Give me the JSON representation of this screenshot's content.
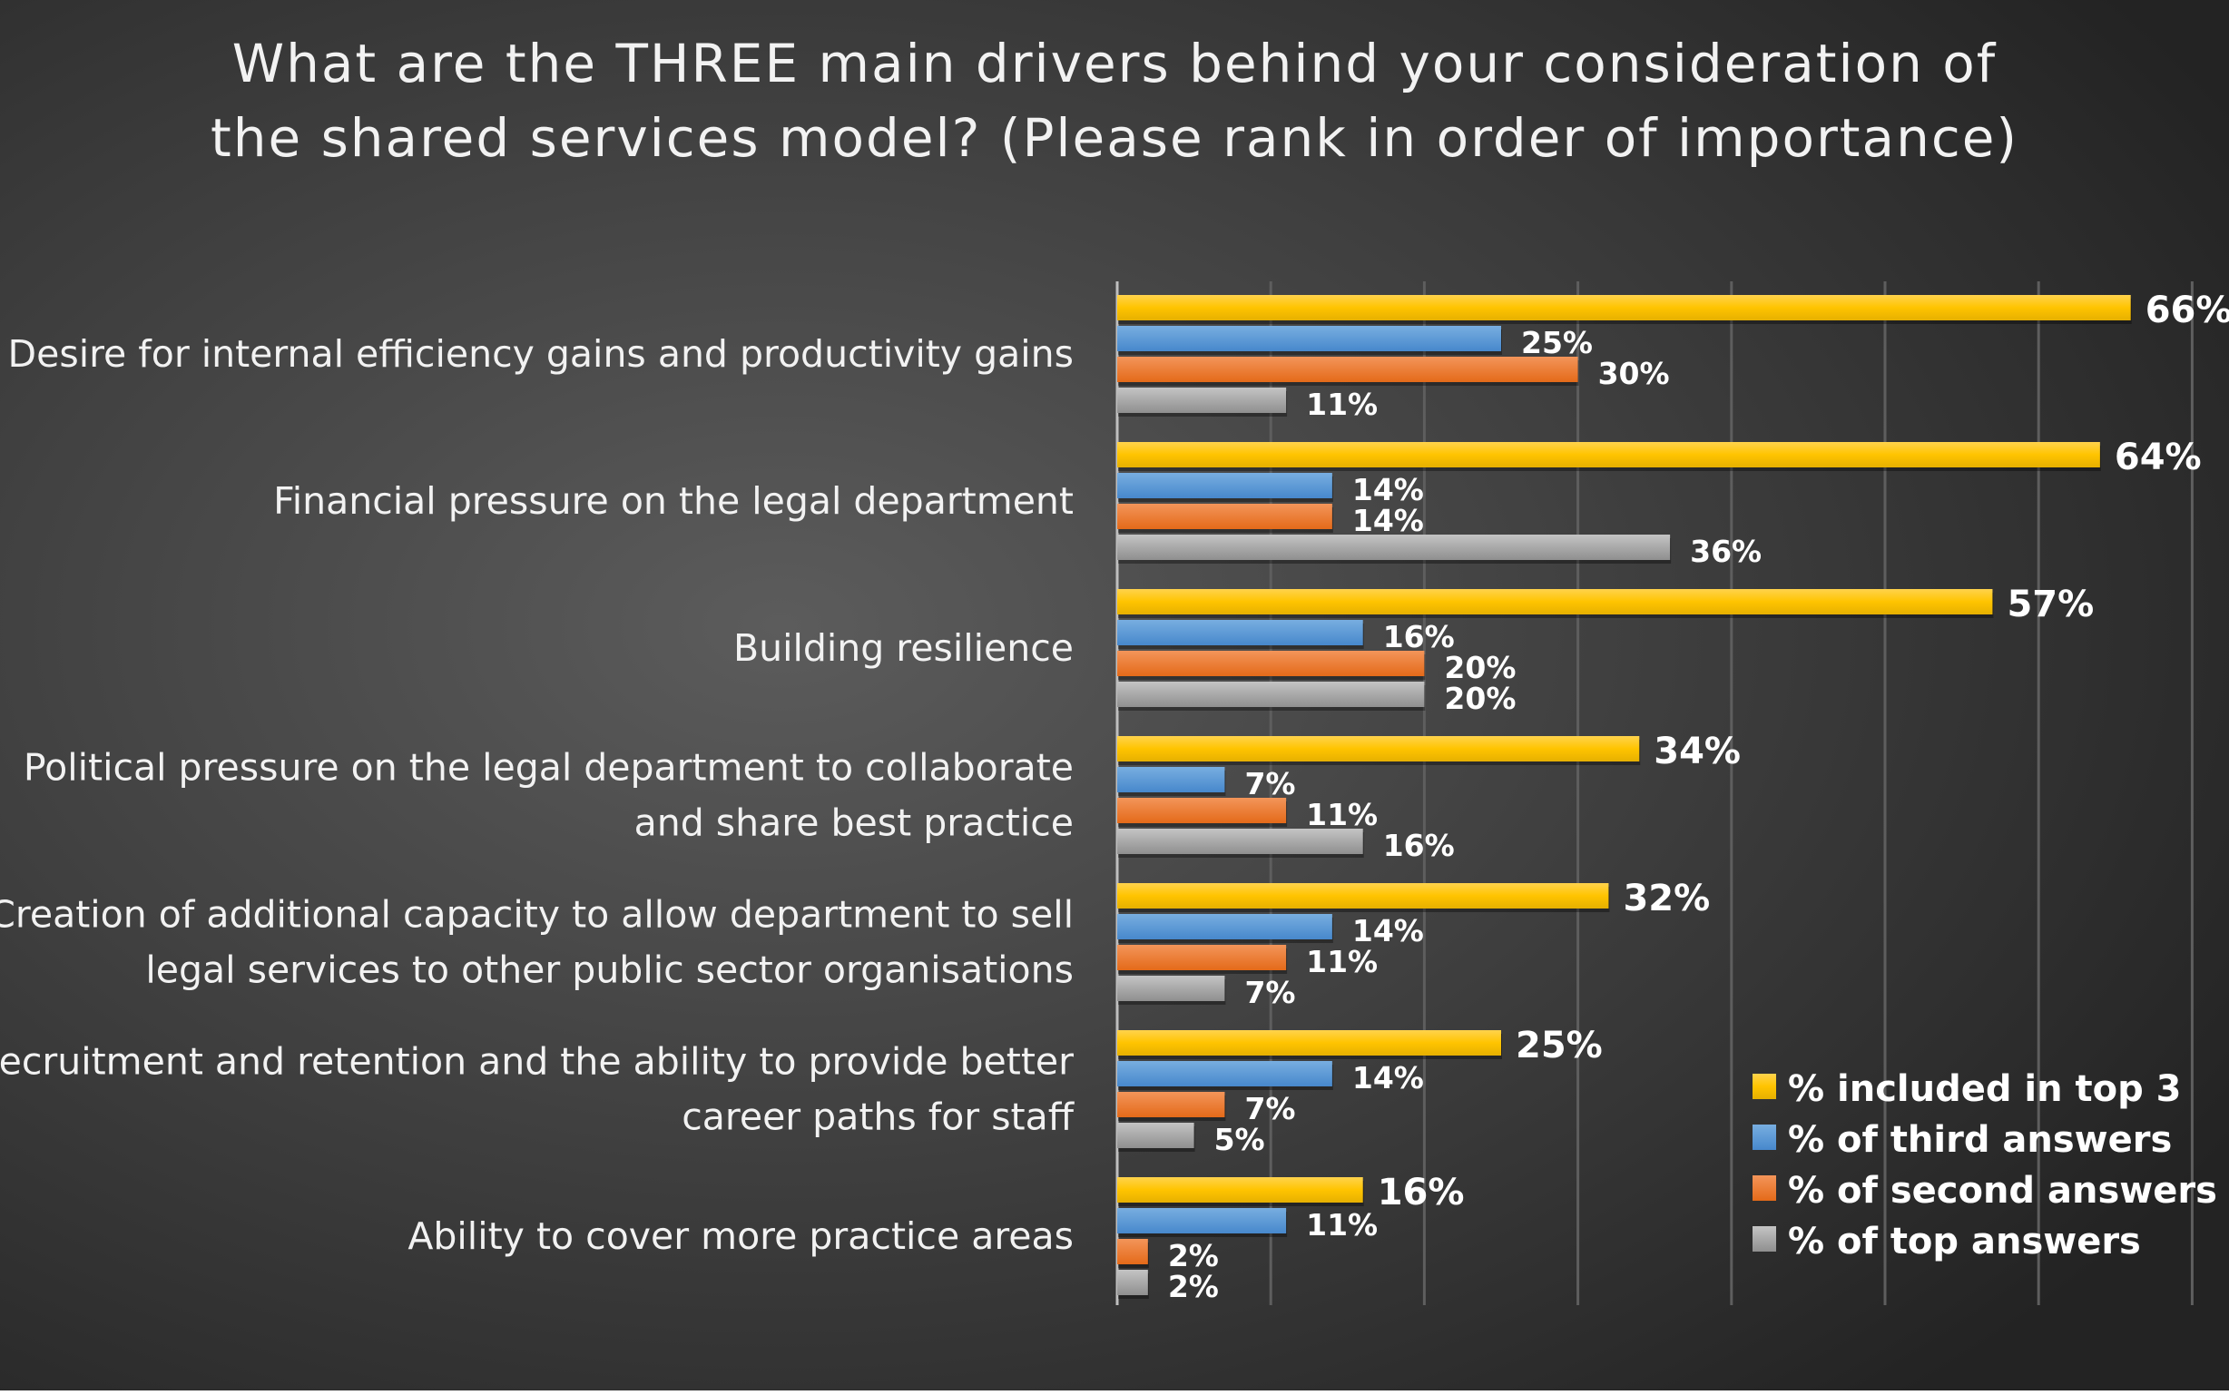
{
  "chart_data": {
    "type": "bar",
    "orientation": "horizontal",
    "title": "What are the THREE main drivers behind your consideration of the shared services model? (Please rank in order of importance)",
    "title_lines": [
      "What are the THREE main drivers behind your consideration of",
      "the shared services model? (Please rank in order of importance)"
    ],
    "categories": [
      "Desire for internal efficiency gains and productivity gains",
      "Financial pressure on the legal department",
      "Building resilience",
      "Political pressure on the legal department to collaborate and share best practice",
      "Creation of additional capacity to allow department to sell legal services to other public sector organisations",
      "Recruitment and retention and the ability to provide better career paths for staff",
      "Ability to cover more practice areas"
    ],
    "category_lines": [
      [
        "Desire for internal efficiency gains and productivity gains"
      ],
      [
        "Financial pressure on the legal department"
      ],
      [
        "Building resilience"
      ],
      [
        "Political pressure on the legal department to collaborate",
        "and share best practice"
      ],
      [
        "Creation of additional capacity to allow department to sell",
        "legal services to other public sector organisations"
      ],
      [
        "Recruitment and retention and the ability to provide better",
        "career paths for staff"
      ],
      [
        "Ability to cover more practice areas"
      ]
    ],
    "series": [
      {
        "name": "% included in top 3",
        "color": "#FFC000",
        "values": [
          66,
          64,
          57,
          34,
          32,
          25,
          16
        ]
      },
      {
        "name": "% of third answers",
        "color": "#5B9BD5",
        "values": [
          25,
          14,
          16,
          7,
          14,
          14,
          11
        ]
      },
      {
        "name": "% of second answers",
        "color": "#ED7D31",
        "values": [
          30,
          14,
          20,
          11,
          11,
          7,
          2
        ]
      },
      {
        "name": "% of top answers",
        "color": "#A5A5A5",
        "values": [
          11,
          36,
          20,
          16,
          7,
          5,
          2
        ]
      }
    ],
    "value_suffix": "%",
    "xlim": [
      0,
      70
    ],
    "grid": true,
    "axis_tick_labels_shown": false,
    "legend_position": "bottom-right",
    "background": "dark gradient"
  }
}
